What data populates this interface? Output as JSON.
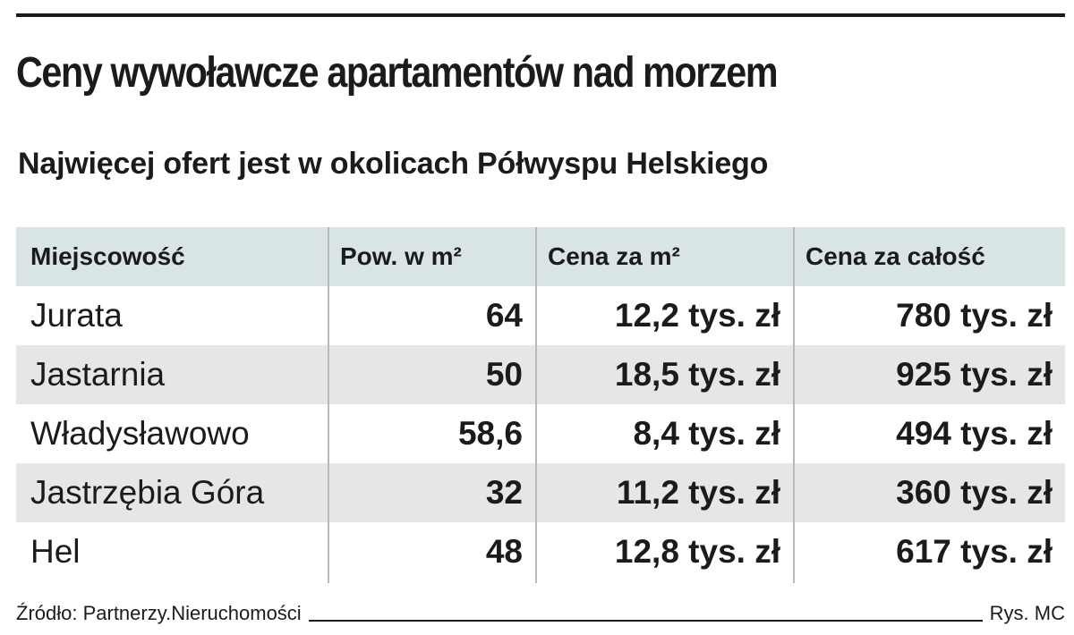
{
  "title": "Ceny wywoławcze apartamentów nad morzem",
  "subtitle": "Najwięcej ofert jest w okolicach Półwyspu Helskiego",
  "colors": {
    "text": "#1b1b1b",
    "header_bg": "#d9e4e4",
    "row_shade": "#e6e6e6",
    "column_divider": "#b9b9b9"
  },
  "chart_data": {
    "type": "table",
    "title": "Ceny wywoławcze apartamentów nad morzem",
    "subtitle": "Najwięcej ofert jest w okolicach Półwyspu Helskiego",
    "columns": [
      "Miejscowość",
      "Pow. w m²",
      "Cena za m²",
      "Cena za całość"
    ],
    "rows": [
      [
        "Jurata",
        "64",
        "12,2 tys. zł",
        "780 tys. zł"
      ],
      [
        "Jastarnia",
        "50",
        "18,5 tys. zł",
        "925 tys. zł"
      ],
      [
        "Władysławowo",
        "58,6",
        "8,4 tys. zł",
        "494 tys. zł"
      ],
      [
        "Jastrzębia Góra",
        "32",
        "11,2 tys. zł",
        "360 tys. zł"
      ],
      [
        "Hel",
        "48",
        "12,8 tys. zł",
        "617 tys. zł"
      ]
    ],
    "row_shading": [
      false,
      true,
      false,
      true,
      false
    ]
  },
  "footer": {
    "source": "Źródło: Partnerzy.Nieruchomości",
    "credit": "Rys. MC"
  }
}
